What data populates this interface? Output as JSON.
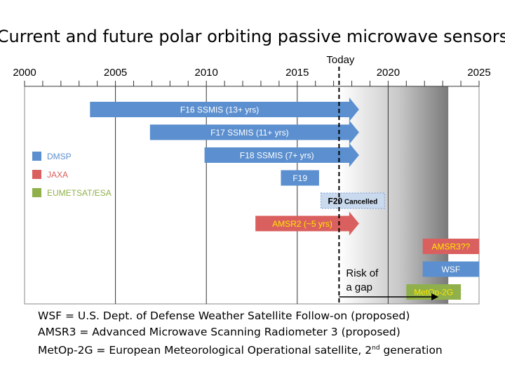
{
  "chart_data": {
    "type": "bar",
    "title": "Current and future polar orbiting passive microwave sensors",
    "x_ticks": [
      2000,
      2005,
      2010,
      2015,
      2020,
      2025
    ],
    "xlim": [
      2000,
      2025
    ],
    "today": {
      "label": "Today",
      "value": 2017.3
    },
    "risk": {
      "label_line1": "Risk of",
      "label_line2": "a gap",
      "start": 2017.3,
      "end": 2023.0
    },
    "legend": [
      {
        "name": "DMSP",
        "color": "#5b8fcf"
      },
      {
        "name": "JAXA",
        "color": "#d9605f"
      },
      {
        "name": "EUMETSAT/ESA",
        "color": "#8fb04a"
      }
    ],
    "bars": [
      {
        "label": "F16 SSMIS (13+ yrs)",
        "start": 2003.6,
        "end": 2018.4,
        "row": 0,
        "color": "#5b8fcf",
        "arrow": true,
        "text_color": "#ffffff"
      },
      {
        "label": "F17 SSMIS (11+ yrs)",
        "start": 2006.9,
        "end": 2018.4,
        "row": 1,
        "color": "#5b8fcf",
        "arrow": true,
        "text_color": "#ffffff"
      },
      {
        "label": "F18 SSMIS (7+ yrs)",
        "start": 2009.9,
        "end": 2018.4,
        "row": 2,
        "color": "#5b8fcf",
        "arrow": true,
        "text_color": "#ffffff"
      },
      {
        "label": "F19",
        "start": 2014.1,
        "end": 2016.2,
        "row": 3,
        "color": "#5b8fcf",
        "arrow": false,
        "text_color": "#ffffff"
      },
      {
        "label": "F20",
        "label_suffix": "Cancelled",
        "start": 2016.3,
        "end": 2019.8,
        "row": 4,
        "color": "#c9d9ee",
        "arrow": false,
        "text_color": "#000000",
        "dashed": true
      },
      {
        "label": "AMSR2 (~5 yrs)",
        "start": 2012.7,
        "end": 2018.4,
        "row": 5,
        "color": "#d9605f",
        "arrow": true,
        "text_color": "#ffe600"
      },
      {
        "label": "AMSR3??",
        "start": 2021.9,
        "end": 2025.0,
        "row": 6,
        "color": "#d9605f",
        "arrow": false,
        "text_color": "#ffe600"
      },
      {
        "label": "WSF",
        "start": 2021.9,
        "end": 2025.0,
        "row": 7,
        "color": "#5b8fcf",
        "arrow": false,
        "text_color": "#ffffff"
      },
      {
        "label": "MetOp-2G",
        "start": 2021.0,
        "end": 2024.0,
        "row": 8,
        "color": "#8fb04a",
        "arrow": false,
        "text_color": "#ffe600"
      }
    ]
  },
  "notes": {
    "line1": "WSF = U.S. Dept. of Defense Weather Satellite Follow-on (proposed)",
    "line2": "AMSR3 = Advanced Microwave Scanning Radiometer 3 (proposed)",
    "line3_pre": "MetOp-2G = European Meteorological Operational satellite, 2",
    "line3_sup": "nd",
    "line3_post": " generation"
  }
}
